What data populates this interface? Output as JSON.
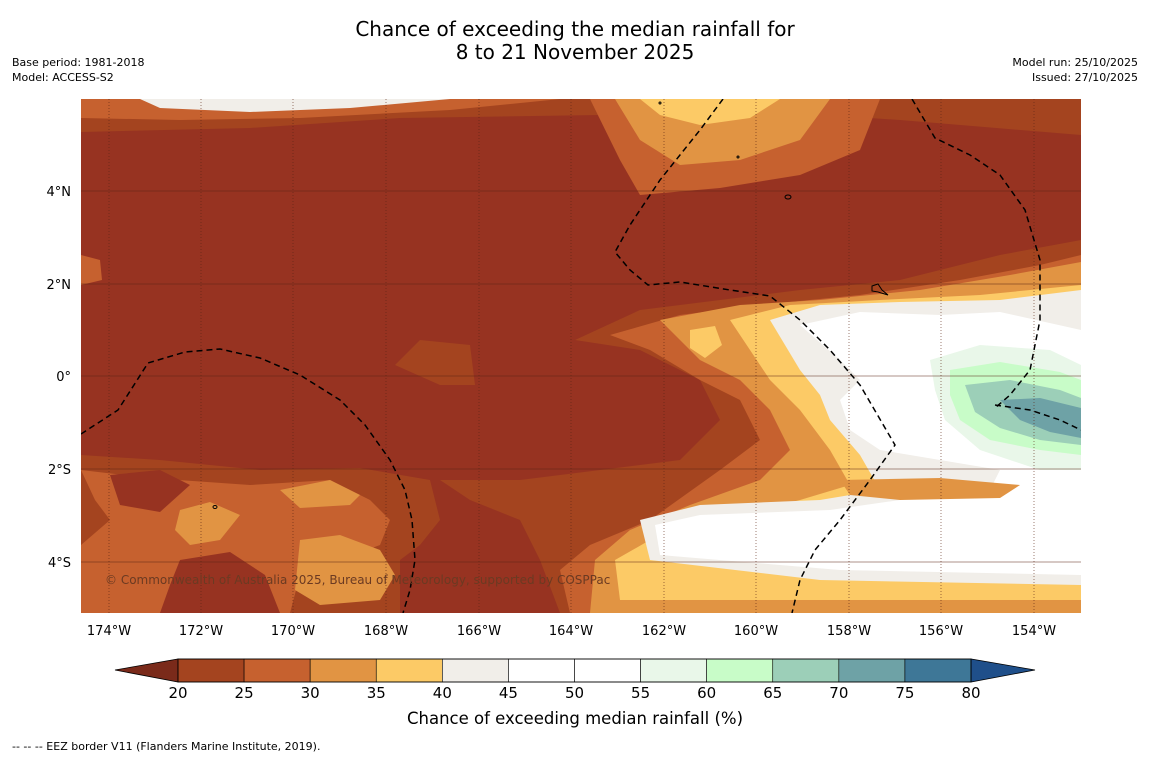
{
  "title": {
    "line1": "Chance of exceeding the median rainfall for",
    "line2": "8 to 21 November 2025"
  },
  "meta_left": {
    "base_period": "Base period: 1981-2018",
    "model": "Model: ACCESS-S2"
  },
  "meta_right": {
    "model_run": "Model run: 25/10/2025",
    "issued": "Issued: 27/10/2025"
  },
  "map": {
    "lon_labels": [
      "174°W",
      "172°W",
      "170°W",
      "168°W",
      "166°W",
      "164°W",
      "162°W",
      "160°W",
      "158°W",
      "156°W",
      "154°W"
    ],
    "lat_labels": [
      "4°N",
      "2°N",
      "0°",
      "2°S",
      "4°S"
    ],
    "copyright": "© Commonwealth of Australia 2025, Bureau of Meteorology, supported by COSPPac"
  },
  "colorbar": {
    "title": "Chance of exceeding median rainfall (%)",
    "ticks": [
      "20",
      "25",
      "30",
      "35",
      "40",
      "45",
      "50",
      "55",
      "60",
      "65",
      "70",
      "75",
      "80"
    ],
    "under_color": "#7a2a1a",
    "over_color": "#1f4f8a",
    "colors": [
      "#a4441f",
      "#c6612f",
      "#e19443",
      "#fcca66",
      "#f1eee9",
      "#ffffff",
      "#ffffff",
      "#e9f7e9",
      "#c8fcc8",
      "#9ccfb8",
      "#6ea2a6",
      "#3e7797"
    ]
  },
  "footnote": "--  --  -- EEZ border V11 (Flanders Marine Institute, 2019)."
}
